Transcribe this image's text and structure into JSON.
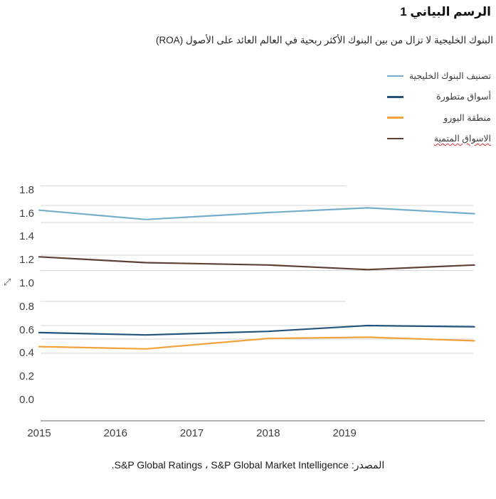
{
  "title": "الرسم البياني 1",
  "subtitle": "البنوك الخليجية لا تزال من بين البنوك الأكثر ربحية في العالم العائد على الأصول (ROA)",
  "source": "المصدر: S&P Global Ratings ، S&P Global Market Intelligence.",
  "cursor_icon": "⤢",
  "colors": {
    "gcc_banks": "#74AECB",
    "developed_markets": "#24547D",
    "eurozone": "#F2A33C",
    "emerging_markets": "#5E4038",
    "grid": "#D6D6D6",
    "axis": "#7F7F7F",
    "tick_text": "#404040"
  },
  "legend": {
    "items": [
      {
        "id": "gcc-banks",
        "label": "تصنيف البنوك الخليجية",
        "color": "#74AECB",
        "misspelled": false
      },
      {
        "id": "developed-markets",
        "label": "أسواق متطورة",
        "color": "#24547D",
        "misspelled": false
      },
      {
        "id": "eurozone",
        "label": "منطقة اليورو",
        "color": "#F2A33C",
        "misspelled": false
      },
      {
        "id": "emerging-markets",
        "label": "الاسواق المتمية",
        "color": "#5E4038",
        "misspelled": true
      }
    ]
  },
  "chart_data": {
    "type": "line",
    "title": "الرسم البياني 1",
    "subtitle_roa": "العائد على الأصول (ROA)",
    "x_tick_labels": [
      "2015",
      "2016",
      "2017",
      "2018",
      "2019"
    ],
    "y_tick_labels": [
      "1.8",
      "1.6",
      "1.4",
      "1.2",
      "1.0",
      "0.8",
      "0.6",
      "0.4",
      "0.2",
      "0.0"
    ],
    "ylim": [
      0.0,
      1.8
    ],
    "y_step": 0.2,
    "grid": true,
    "legend_position": "top-right",
    "series": [
      {
        "name": "تصنيف البنوك الخليجية",
        "id": "gcc-banks",
        "color": "#74AECB",
        "x": [
          2015,
          2016.4,
          2018,
          2019.3,
          2020.7
        ],
        "values": [
          1.63,
          1.55,
          1.61,
          1.65,
          1.6
        ]
      },
      {
        "name": "أسواق متطورة",
        "id": "developed-markets",
        "color": "#24547D",
        "x": [
          2015,
          2016.4,
          2018,
          2019.3,
          2020.7
        ],
        "values": [
          0.58,
          0.56,
          0.59,
          0.64,
          0.63
        ]
      },
      {
        "name": "منطقة اليورو",
        "id": "eurozone",
        "color": "#F2A33C",
        "x": [
          2015,
          2016.4,
          2018,
          2019.3,
          2020.7
        ],
        "values": [
          0.46,
          0.44,
          0.53,
          0.54,
          0.51
        ]
      },
      {
        "name": "الاسواق المتمية",
        "id": "emerging-markets",
        "color": "#5E4038",
        "x": [
          2015,
          2016.4,
          2018,
          2019.3,
          2020.7
        ],
        "values": [
          1.23,
          1.18,
          1.16,
          1.12,
          1.16
        ]
      }
    ]
  }
}
